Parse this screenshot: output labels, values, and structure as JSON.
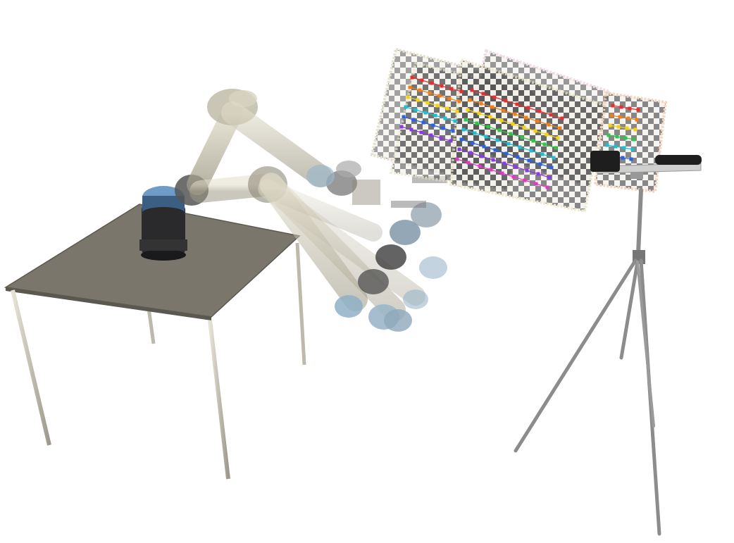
{
  "scene": {
    "subjects": [
      "robot-arm",
      "table",
      "calibration-boards",
      "camera",
      "tripod"
    ],
    "colors": {
      "background": "#ffffff",
      "table_top": "#7a766c",
      "table_edge": "#5b584f",
      "table_leg": "#cfcbbd",
      "robot_base": "#2a2a2c",
      "robot_cap": "#6f9cc4",
      "arm_link": "#c9c4b0",
      "joint_cap": "#9bb6c9",
      "board_frame": "#f4f1e6",
      "board_tile": "#4a4a4a",
      "tripod": "#8c8c8c",
      "camera_body": "#1e1e1e"
    },
    "marker_palette": [
      "#e53030",
      "#f07f1a",
      "#f2d21a",
      "#35c24a",
      "#21bcd1",
      "#2a62e0",
      "#8b3be0",
      "#e03bc4"
    ]
  }
}
